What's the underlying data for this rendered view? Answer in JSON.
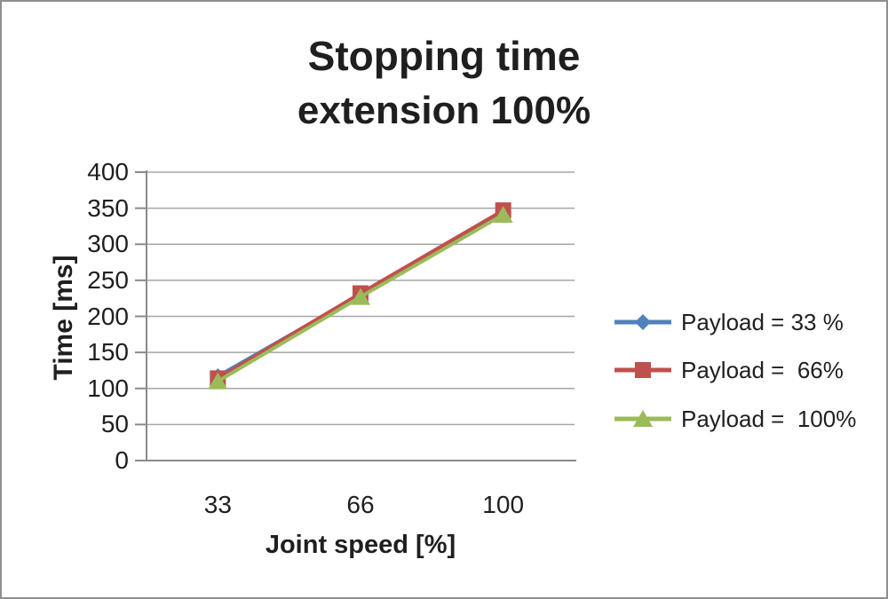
{
  "title": {
    "line1": "Stopping time",
    "line2": "extension 100%"
  },
  "axes": {
    "y_title": "Time [ms]",
    "x_title": "Joint speed [%]",
    "y_ticks": [
      "400",
      "350",
      "300",
      "250",
      "200",
      "150",
      "100",
      "50",
      "0"
    ],
    "x_ticks": [
      "33",
      "66",
      "100"
    ]
  },
  "colors": {
    "grid": "#a6a6a6",
    "axis": "#8a8a8a",
    "text": "#1f1f1f",
    "frame_border": "#8f8f8f",
    "series_blue": "#4F81BD",
    "series_red": "#C0504D",
    "series_green": "#9BBB59"
  },
  "chart_data": {
    "type": "line",
    "title": "Stopping time extension 100%",
    "categories": [
      33,
      66,
      100
    ],
    "series": [
      {
        "name": "Payload = 33 %",
        "color": "#4F81BD",
        "marker": "diamond",
        "values": [
          117,
          230,
          344
        ]
      },
      {
        "name": "Payload =  66%",
        "color": "#C0504D",
        "marker": "square",
        "values": [
          114,
          232,
          347
        ]
      },
      {
        "name": "Payload =  100%",
        "color": "#9BBB59",
        "marker": "triangle",
        "values": [
          110,
          227,
          341
        ]
      }
    ],
    "xlabel": "Joint speed [%]",
    "ylabel": "Time [ms]",
    "ylim": [
      0,
      400
    ],
    "ytick_step": 50,
    "xtick_labels": [
      "33",
      "66",
      "100"
    ],
    "grid": true,
    "legend_position": "right"
  }
}
